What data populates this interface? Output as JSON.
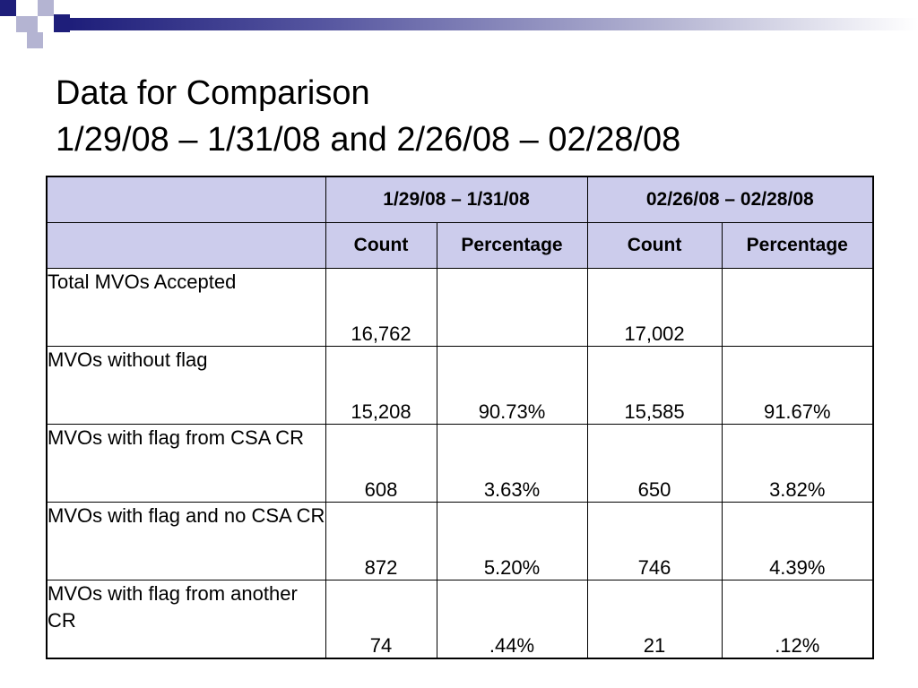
{
  "slide": {
    "title_line1": "Data for Comparison",
    "title_line2": "1/29/08 – 1/31/08 and 2/26/08 – 02/28/08"
  },
  "table": {
    "corner": "",
    "periods": [
      "1/29/08 – 1/31/08",
      "02/26/08 – 02/28/08"
    ],
    "subheaders": [
      "Count",
      "Percentage",
      "Count",
      "Percentage"
    ],
    "rows": [
      {
        "label": "Total MVOs Accepted",
        "values": [
          "16,762",
          "",
          "17,002",
          ""
        ]
      },
      {
        "label": "MVOs without flag",
        "values": [
          "15,208",
          "90.73%",
          "15,585",
          "91.67%"
        ]
      },
      {
        "label": "MVOs with flag from CSA CR",
        "values": [
          "608",
          "3.63%",
          "650",
          "3.82%"
        ]
      },
      {
        "label": "MVOs with flag and no CSA CR",
        "values": [
          "872",
          "5.20%",
          "746",
          "4.39%"
        ]
      },
      {
        "label": "MVOs with flag from another CR",
        "values": [
          "74",
          ".44%",
          "21",
          ".12%"
        ]
      }
    ]
  },
  "colors": {
    "header_fill": "#ccccec",
    "accent_dark": "#1e1e7a",
    "accent_light": "#b4b4d2"
  }
}
